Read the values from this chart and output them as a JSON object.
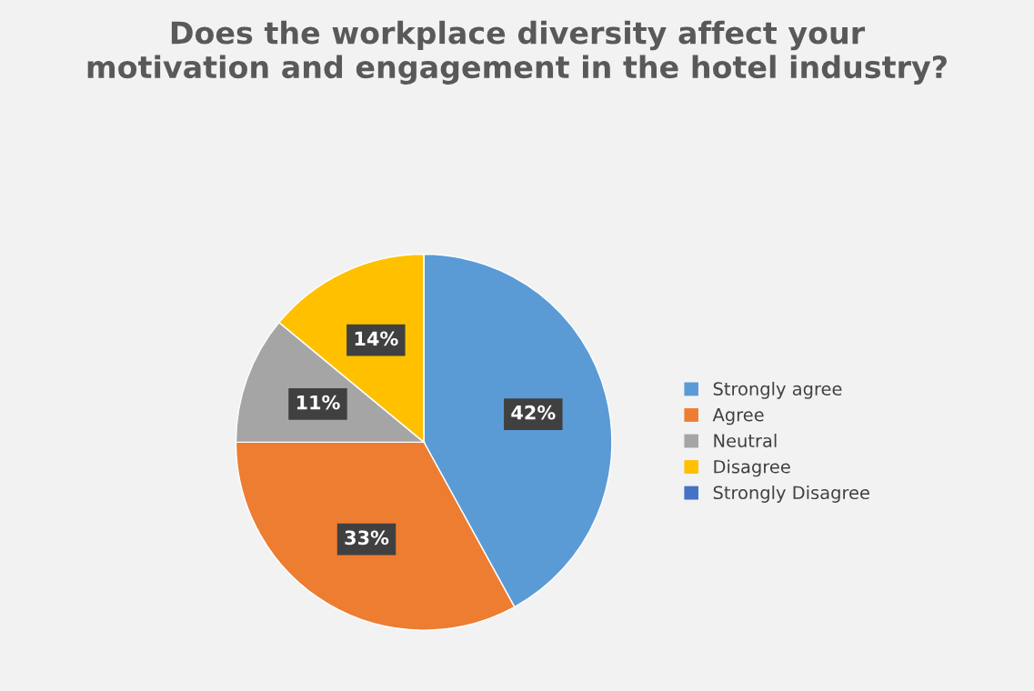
{
  "chart_data": {
    "type": "pie",
    "title": "Does the workplace diversity affect your motivation and engagement in the hotel industry?",
    "categories": [
      "Strongly agree",
      "Agree",
      "Neutral",
      "Disagree",
      "Strongly Disagree"
    ],
    "values": [
      42,
      33,
      11,
      14,
      0
    ],
    "colors": [
      "#5b9bd5",
      "#ed7d31",
      "#a5a5a5",
      "#ffc000",
      "#4472c4"
    ],
    "value_labels": [
      "42%",
      "33%",
      "11%",
      "14%",
      null
    ],
    "legend": "right"
  }
}
